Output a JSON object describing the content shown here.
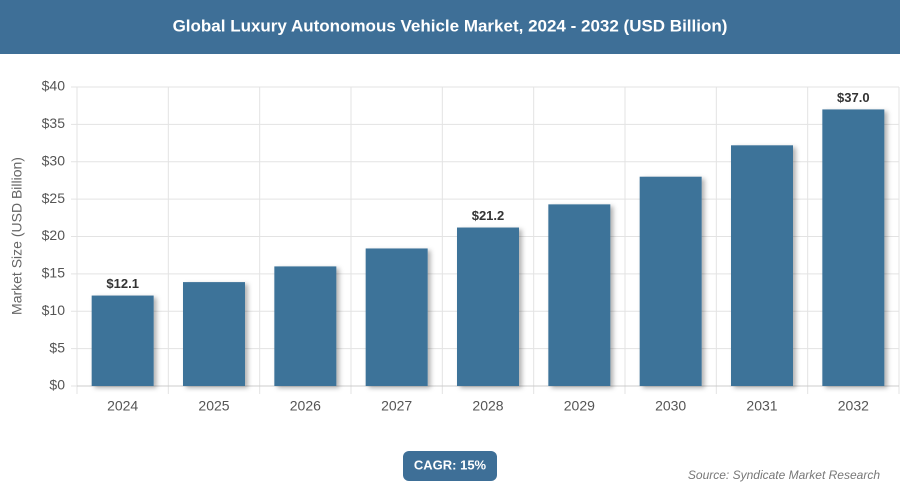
{
  "chart_data": {
    "type": "bar",
    "title": "Global Luxury Autonomous Vehicle Market, 2024 - 2032 (USD Billion)",
    "ylabel": "Market Size (USD Billion)",
    "categories": [
      "2024",
      "2025",
      "2026",
      "2027",
      "2028",
      "2029",
      "2030",
      "2031",
      "2032"
    ],
    "values": [
      12.1,
      13.9,
      16.0,
      18.4,
      21.2,
      24.3,
      28.0,
      32.2,
      37.0
    ],
    "value_labels": [
      "$12.1",
      null,
      null,
      null,
      "$21.2",
      null,
      null,
      null,
      "$37.0"
    ],
    "color": "#3e7399",
    "ylim": [
      0,
      40
    ],
    "yticks": [
      {
        "value": 0,
        "label": "$0"
      },
      {
        "value": 5,
        "label": "$5"
      },
      {
        "value": 10,
        "label": "$10"
      },
      {
        "value": 15,
        "label": "$15"
      },
      {
        "value": 20,
        "label": "$20"
      },
      {
        "value": 25,
        "label": "$25"
      },
      {
        "value": 30,
        "label": "$30"
      },
      {
        "value": 35,
        "label": "$35"
      },
      {
        "value": 40,
        "label": "$40"
      }
    ],
    "grid": true,
    "cagr_label": "CAGR: 15%",
    "source": "Source: Syndicate Market Research"
  }
}
